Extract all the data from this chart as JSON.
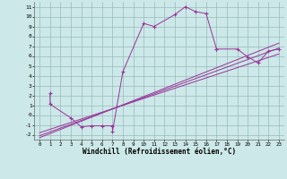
{
  "xlabel": "Windchill (Refroidissement éolien,°C)",
  "xlim": [
    -0.5,
    23.5
  ],
  "ylim": [
    -2.5,
    11.5
  ],
  "xticks": [
    0,
    1,
    2,
    3,
    4,
    5,
    6,
    7,
    8,
    9,
    10,
    11,
    12,
    13,
    14,
    15,
    16,
    17,
    18,
    19,
    20,
    21,
    22,
    23
  ],
  "yticks": [
    -2,
    -1,
    0,
    1,
    2,
    3,
    4,
    5,
    6,
    7,
    8,
    9,
    10,
    11
  ],
  "bg_color": "#cce8e8",
  "line_color": "#993399",
  "grid_color": "#99bbbb",
  "main_x": [
    1,
    1,
    3,
    4,
    5,
    6,
    7,
    7,
    8,
    10,
    11,
    13,
    14,
    15,
    16,
    17,
    17,
    19,
    20,
    21,
    22,
    23
  ],
  "main_y": [
    2.2,
    1.1,
    -0.3,
    -1.2,
    -1.1,
    -1.1,
    -1.1,
    -1.7,
    4.4,
    9.3,
    9.0,
    10.2,
    11.0,
    10.5,
    10.3,
    6.7,
    6.7,
    6.7,
    5.9,
    5.3,
    6.5,
    6.7
  ],
  "line1_x": [
    0,
    23
  ],
  "line1_y": [
    -2.1,
    6.8
  ],
  "line2_x": [
    0,
    23
  ],
  "line2_y": [
    -1.8,
    6.2
  ],
  "line3_x": [
    0,
    23
  ],
  "line3_y": [
    -2.3,
    7.3
  ]
}
